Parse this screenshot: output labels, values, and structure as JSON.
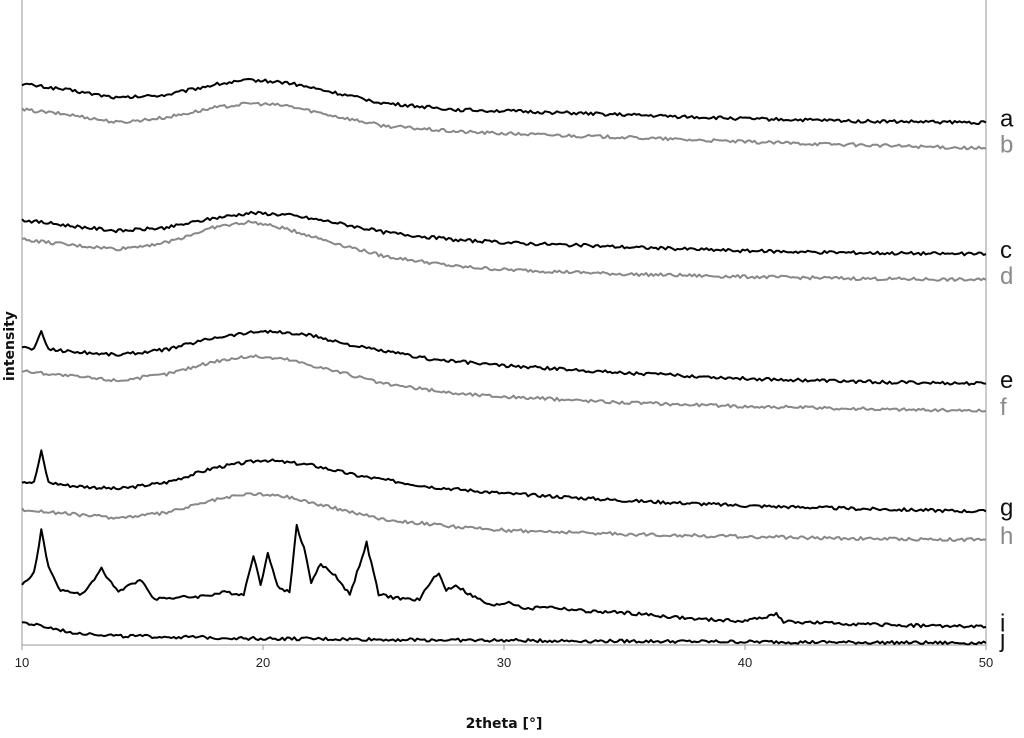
{
  "chart_data": {
    "type": "line",
    "xlabel": "2theta [°]",
    "ylabel": "intensity",
    "xlim": [
      10,
      50
    ],
    "x_ticks": [
      10,
      20,
      30,
      40,
      50
    ],
    "grid": false,
    "y_ticks_shown": false,
    "series": [
      {
        "name": "a",
        "color": "#000000",
        "points": [
          [
            10,
            0.87
          ],
          [
            12,
            0.86
          ],
          [
            14,
            0.848
          ],
          [
            16,
            0.853
          ],
          [
            18,
            0.869
          ],
          [
            19.5,
            0.876
          ],
          [
            21,
            0.872
          ],
          [
            23,
            0.856
          ],
          [
            25,
            0.84
          ],
          [
            28,
            0.83
          ],
          [
            30,
            0.828
          ],
          [
            35,
            0.822
          ],
          [
            40,
            0.816
          ],
          [
            45,
            0.812
          ],
          [
            50,
            0.81
          ]
        ]
      },
      {
        "name": "b",
        "color": "#888888",
        "points": [
          [
            10,
            0.83
          ],
          [
            12,
            0.822
          ],
          [
            14,
            0.81
          ],
          [
            16,
            0.818
          ],
          [
            18,
            0.833
          ],
          [
            19.5,
            0.84
          ],
          [
            21,
            0.836
          ],
          [
            23,
            0.82
          ],
          [
            25,
            0.805
          ],
          [
            28,
            0.796
          ],
          [
            30,
            0.793
          ],
          [
            35,
            0.787
          ],
          [
            40,
            0.78
          ],
          [
            45,
            0.775
          ],
          [
            50,
            0.77
          ]
        ]
      },
      {
        "name": "c",
        "color": "#000000",
        "points": [
          [
            10,
            0.659
          ],
          [
            12,
            0.65
          ],
          [
            14,
            0.642
          ],
          [
            16,
            0.647
          ],
          [
            18,
            0.662
          ],
          [
            19.5,
            0.67
          ],
          [
            21,
            0.667
          ],
          [
            23,
            0.655
          ],
          [
            25,
            0.64
          ],
          [
            28,
            0.628
          ],
          [
            30,
            0.624
          ],
          [
            35,
            0.617
          ],
          [
            40,
            0.611
          ],
          [
            45,
            0.608
          ],
          [
            50,
            0.606
          ]
        ]
      },
      {
        "name": "d",
        "color": "#888888",
        "points": [
          [
            10,
            0.629
          ],
          [
            12,
            0.62
          ],
          [
            14,
            0.614
          ],
          [
            16,
            0.624
          ],
          [
            18,
            0.648
          ],
          [
            19.5,
            0.656
          ],
          [
            21,
            0.645
          ],
          [
            23,
            0.623
          ],
          [
            25,
            0.603
          ],
          [
            28,
            0.587
          ],
          [
            30,
            0.582
          ],
          [
            35,
            0.575
          ],
          [
            40,
            0.571
          ],
          [
            45,
            0.568
          ],
          [
            50,
            0.566
          ]
        ]
      },
      {
        "name": "e",
        "color": "#000000",
        "points": [
          [
            10,
            0.462
          ],
          [
            10.5,
            0.459
          ],
          [
            10.8,
            0.485
          ],
          [
            11.1,
            0.459
          ],
          [
            12,
            0.455
          ],
          [
            14,
            0.45
          ],
          [
            16,
            0.458
          ],
          [
            18,
            0.477
          ],
          [
            20,
            0.487
          ],
          [
            22,
            0.48
          ],
          [
            24,
            0.462
          ],
          [
            27,
            0.443
          ],
          [
            30,
            0.433
          ],
          [
            35,
            0.422
          ],
          [
            40,
            0.413
          ],
          [
            45,
            0.408
          ],
          [
            50,
            0.405
          ]
        ]
      },
      {
        "name": "f",
        "color": "#888888",
        "points": [
          [
            10,
            0.425
          ],
          [
            12,
            0.417
          ],
          [
            14,
            0.41
          ],
          [
            16,
            0.42
          ],
          [
            18,
            0.44
          ],
          [
            19.5,
            0.448
          ],
          [
            21,
            0.443
          ],
          [
            23,
            0.425
          ],
          [
            25,
            0.405
          ],
          [
            28,
            0.39
          ],
          [
            30,
            0.385
          ],
          [
            35,
            0.376
          ],
          [
            40,
            0.37
          ],
          [
            45,
            0.366
          ],
          [
            50,
            0.363
          ]
        ]
      },
      {
        "name": "g",
        "color": "#000000",
        "points": [
          [
            10,
            0.254
          ],
          [
            10.5,
            0.252
          ],
          [
            10.8,
            0.3
          ],
          [
            11.1,
            0.252
          ],
          [
            12,
            0.247
          ],
          [
            14,
            0.242
          ],
          [
            16,
            0.252
          ],
          [
            18,
            0.275
          ],
          [
            20,
            0.287
          ],
          [
            22,
            0.279
          ],
          [
            24,
            0.262
          ],
          [
            27,
            0.245
          ],
          [
            30,
            0.235
          ],
          [
            35,
            0.224
          ],
          [
            40,
            0.216
          ],
          [
            45,
            0.211
          ],
          [
            50,
            0.207
          ]
        ]
      },
      {
        "name": "h",
        "color": "#888888",
        "points": [
          [
            10,
            0.21
          ],
          [
            12,
            0.203
          ],
          [
            14,
            0.197
          ],
          [
            16,
            0.205
          ],
          [
            18,
            0.225
          ],
          [
            19.5,
            0.235
          ],
          [
            21,
            0.23
          ],
          [
            23,
            0.212
          ],
          [
            25,
            0.195
          ],
          [
            28,
            0.183
          ],
          [
            30,
            0.178
          ],
          [
            35,
            0.172
          ],
          [
            40,
            0.168
          ],
          [
            45,
            0.165
          ],
          [
            50,
            0.163
          ]
        ]
      },
      {
        "name": "i",
        "color": "#000000",
        "points": [
          [
            10,
            0.092
          ],
          [
            10.5,
            0.112
          ],
          [
            10.8,
            0.178
          ],
          [
            11.1,
            0.12
          ],
          [
            11.6,
            0.085
          ],
          [
            12.5,
            0.078
          ],
          [
            13.3,
            0.118
          ],
          [
            14,
            0.082
          ],
          [
            14.9,
            0.102
          ],
          [
            15.5,
            0.072
          ],
          [
            17.3,
            0.075
          ],
          [
            18.5,
            0.082
          ],
          [
            19.2,
            0.078
          ],
          [
            19.6,
            0.14
          ],
          [
            19.9,
            0.092
          ],
          [
            20.2,
            0.145
          ],
          [
            20.6,
            0.09
          ],
          [
            21.1,
            0.082
          ],
          [
            21.4,
            0.185
          ],
          [
            21.7,
            0.15
          ],
          [
            22.0,
            0.098
          ],
          [
            22.4,
            0.125
          ],
          [
            23.0,
            0.108
          ],
          [
            23.6,
            0.078
          ],
          [
            24.3,
            0.158
          ],
          [
            24.8,
            0.078
          ],
          [
            25.7,
            0.072
          ],
          [
            26.5,
            0.07
          ],
          [
            27.0,
            0.102
          ],
          [
            27.3,
            0.11
          ],
          [
            27.6,
            0.085
          ],
          [
            28.0,
            0.093
          ],
          [
            28.5,
            0.08
          ],
          [
            29.5,
            0.06
          ],
          [
            30.2,
            0.067
          ],
          [
            31.0,
            0.055
          ],
          [
            31.6,
            0.06
          ],
          [
            33.5,
            0.052
          ],
          [
            35,
            0.05
          ],
          [
            38,
            0.04
          ],
          [
            40,
            0.037
          ],
          [
            41.3,
            0.048
          ],
          [
            41.6,
            0.036
          ],
          [
            45,
            0.032
          ],
          [
            50,
            0.028
          ]
        ]
      },
      {
        "name": "j",
        "color": "#000000",
        "points": [
          [
            10,
            0.035
          ],
          [
            12,
            0.02
          ],
          [
            14,
            0.014
          ],
          [
            20,
            0.01
          ],
          [
            30,
            0.007
          ],
          [
            40,
            0.005
          ],
          [
            50,
            0.003
          ]
        ]
      }
    ]
  }
}
